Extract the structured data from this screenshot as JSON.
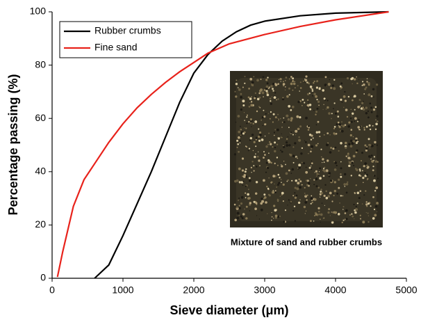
{
  "chart_data": {
    "type": "line",
    "xlabel": "Sieve diameter (μm)",
    "ylabel": "Percentage passing (%)",
    "xlim": [
      0,
      5000
    ],
    "ylim": [
      0,
      100
    ],
    "xticks": [
      0,
      1000,
      2000,
      3000,
      4000,
      5000
    ],
    "yticks": [
      0,
      20,
      40,
      60,
      80,
      100
    ],
    "grid": false,
    "legend": "upper left",
    "inset_caption": "Mixture of sand and rubber crumbs",
    "series": [
      {
        "name": "Rubber crumbs",
        "color": "#000000",
        "x": [
          600,
          800,
          1000,
          1200,
          1400,
          1600,
          1800,
          2000,
          2200,
          2400,
          2600,
          2800,
          3000,
          3500,
          4000,
          4750
        ],
        "values": [
          0,
          5,
          16,
          28,
          40,
          53,
          66,
          77,
          84,
          89,
          92.5,
          95,
          96.5,
          98.5,
          99.5,
          100
        ]
      },
      {
        "name": "Fine sand",
        "color": "#e8221b",
        "x": [
          75,
          150,
          300,
          450,
          600,
          800,
          1000,
          1200,
          1400,
          1600,
          1800,
          2000,
          2200,
          2500,
          3000,
          3500,
          4000,
          4750
        ],
        "values": [
          0.5,
          10,
          27,
          37,
          43,
          51,
          58,
          64,
          69,
          73.5,
          77.5,
          81,
          84.5,
          88,
          91.5,
          94.5,
          97,
          100
        ]
      }
    ]
  }
}
